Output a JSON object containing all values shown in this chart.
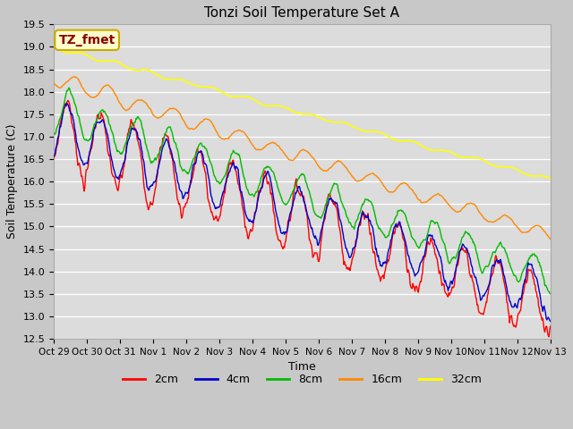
{
  "title": "Tonzi Soil Temperature Set A",
  "xlabel": "Time",
  "ylabel": "Soil Temperature (C)",
  "ylim": [
    12.5,
    19.5
  ],
  "fig_bg": "#c8c8c8",
  "plot_bg": "#e0e0e0",
  "annotation_text": "TZ_fmet",
  "annotation_color": "#8b0000",
  "annotation_bg": "#ffffcc",
  "annotation_edge": "#ccaa00",
  "legend_entries": [
    "2cm",
    "4cm",
    "8cm",
    "16cm",
    "32cm"
  ],
  "line_colors": [
    "#ff0000",
    "#0000cc",
    "#00bb00",
    "#ff8800",
    "#ffff00"
  ],
  "line_widths": [
    1.0,
    1.0,
    1.0,
    1.0,
    1.2
  ],
  "x_tick_labels": [
    "Oct 29",
    "Oct 30",
    "Oct 31",
    "Nov 1",
    "Nov 2",
    "Nov 3",
    "Nov 4",
    "Nov 5",
    "Nov 6",
    "Nov 7",
    "Nov 8",
    "Nov 9",
    "Nov 10",
    "Nov 11",
    "Nov 12",
    "Nov 13"
  ],
  "points_per_day": 48,
  "num_days": 15,
  "seed": 7
}
